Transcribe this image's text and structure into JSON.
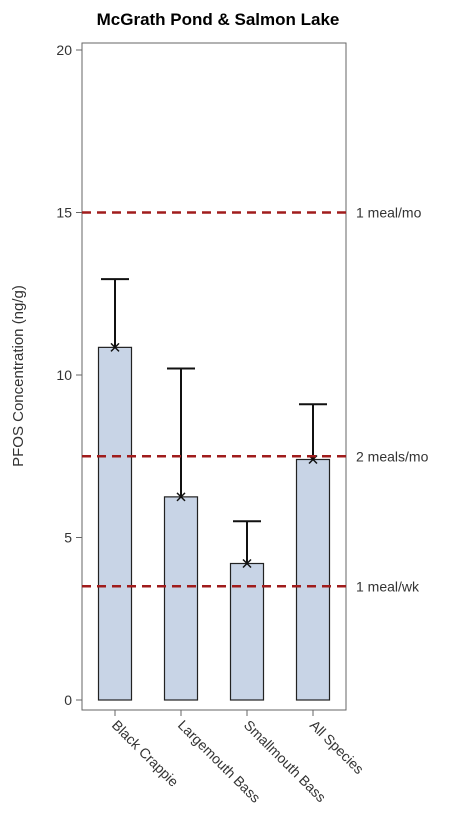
{
  "chart_data": {
    "type": "bar",
    "title": "McGrath Pond & Salmon Lake",
    "xlabel": "",
    "ylabel": "PFOS Concentration (ng/g)",
    "ylim": [
      0,
      20
    ],
    "yticks": [
      0,
      5,
      10,
      15,
      20
    ],
    "grid": false,
    "categories": [
      "Black Crappie",
      "Largemouth Bass",
      "Smallmouth Bass",
      "All Species"
    ],
    "values": [
      10.85,
      6.25,
      4.2,
      7.4
    ],
    "error_upper": [
      12.95,
      10.2,
      5.5,
      9.1
    ],
    "markers": [
      10.85,
      6.25,
      4.2,
      7.4
    ],
    "reference_lines": [
      {
        "value": 15,
        "label": "1 meal/mo"
      },
      {
        "value": 7.5,
        "label": "2 meals/mo"
      },
      {
        "value": 3.5,
        "label": "1 meal/wk"
      }
    ],
    "colors": {
      "bar_fill": "#c8d4e6",
      "bar_stroke": "#222222",
      "ref_line": "#a01c1c",
      "axis": "#666666"
    }
  }
}
